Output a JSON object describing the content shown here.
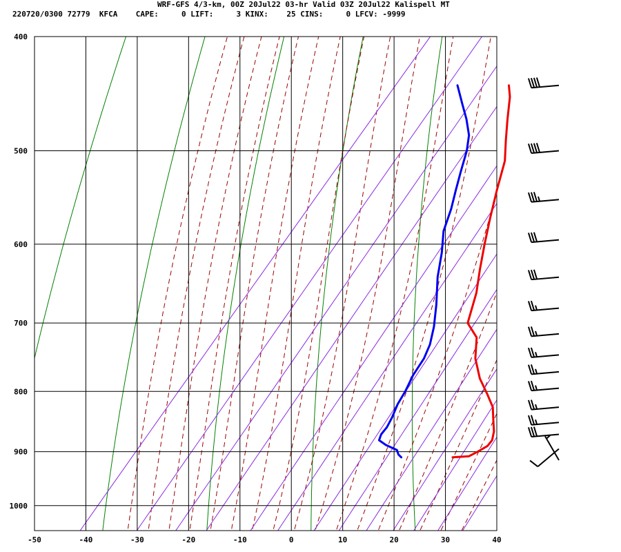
{
  "header": {
    "title": "WRF-GFS 4/3-km, 00Z 20Jul22 03-hr Valid 03Z 20Jul22 Kalispell MT",
    "stats_line": "220720/0300 72779  KFCA    CAPE:     0 LIFT:     3 KINX:    25 CINS:     0 LFCV: -9999"
  },
  "chart_data": {
    "type": "line",
    "subtype": "skew-T log-P sounding",
    "title": "WRF-GFS 4/3-km, 00Z 20Jul22 03-hr Valid 03Z 20Jul22 Kalispell MT",
    "xlabel": "",
    "ylabel": "",
    "x_ticks": [
      -50,
      -40,
      -30,
      -20,
      -10,
      0,
      10,
      20,
      30,
      40
    ],
    "y_ticks": [
      400,
      500,
      600,
      700,
      800,
      900,
      1000
    ],
    "p_range": [
      400,
      1050
    ],
    "y_scale": "log",
    "grid": true,
    "colors": {
      "temperature": "#ee0000",
      "dewpoint": "#0000ee",
      "dry_adiabat": "#008000",
      "moist_adiabat": "#990000",
      "mixing_ratio": "#8a2be2",
      "grid": "#000000"
    },
    "series": [
      {
        "points": [
          [
            20,
            910
          ],
          [
            23,
            908
          ],
          [
            24,
            900
          ],
          [
            25,
            890
          ],
          [
            25,
            880
          ],
          [
            24,
            865
          ],
          [
            22,
            845
          ],
          [
            20,
            825
          ],
          [
            17,
            805
          ],
          [
            13,
            780
          ],
          [
            9,
            750
          ],
          [
            6,
            720
          ],
          [
            2,
            700
          ],
          [
            -1,
            660
          ],
          [
            -4,
            630
          ],
          [
            -7,
            600
          ],
          [
            -10,
            570
          ],
          [
            -13,
            540
          ],
          [
            -16,
            510
          ],
          [
            -19,
            490
          ],
          [
            -22,
            470
          ],
          [
            -25,
            450
          ],
          [
            -27,
            440
          ]
        ]
      },
      {
        "points": [
          [
            10,
            910
          ],
          [
            9,
            905
          ],
          [
            8,
            897
          ],
          [
            5,
            888
          ],
          [
            3,
            880
          ],
          [
            2.5,
            870
          ],
          [
            2.5,
            858
          ],
          [
            2,
            842
          ],
          [
            1,
            820
          ],
          [
            0.5,
            800
          ],
          [
            -0.5,
            775
          ],
          [
            -1,
            750
          ],
          [
            -2,
            730
          ],
          [
            -4,
            705
          ],
          [
            -7,
            675
          ],
          [
            -11,
            640
          ],
          [
            -14,
            610
          ],
          [
            -17,
            585
          ],
          [
            -19,
            560
          ],
          [
            -21,
            540
          ],
          [
            -23,
            520
          ],
          [
            -25,
            500
          ],
          [
            -27,
            485
          ],
          [
            -30,
            470
          ],
          [
            -33,
            457
          ],
          [
            -37,
            440
          ]
        ]
      }
    ],
    "wind_barbs": [
      {
        "pressure": 440,
        "dir": 265,
        "speed": 40
      },
      {
        "pressure": 500,
        "dir": 265,
        "speed": 40
      },
      {
        "pressure": 550,
        "dir": 265,
        "speed": 35
      },
      {
        "pressure": 595,
        "dir": 265,
        "speed": 30
      },
      {
        "pressure": 640,
        "dir": 265,
        "speed": 30
      },
      {
        "pressure": 680,
        "dir": 265,
        "speed": 25
      },
      {
        "pressure": 715,
        "dir": 265,
        "speed": 25
      },
      {
        "pressure": 745,
        "dir": 265,
        "speed": 25
      },
      {
        "pressure": 770,
        "dir": 265,
        "speed": 25
      },
      {
        "pressure": 795,
        "dir": 265,
        "speed": 25
      },
      {
        "pressure": 825,
        "dir": 265,
        "speed": 25
      },
      {
        "pressure": 850,
        "dir": 265,
        "speed": 25
      },
      {
        "pressure": 870,
        "dir": 265,
        "speed": 30
      },
      {
        "pressure": 895,
        "dir": 230,
        "speed": 10
      },
      {
        "pressure": 915,
        "dir": 330,
        "speed": 5
      }
    ]
  }
}
